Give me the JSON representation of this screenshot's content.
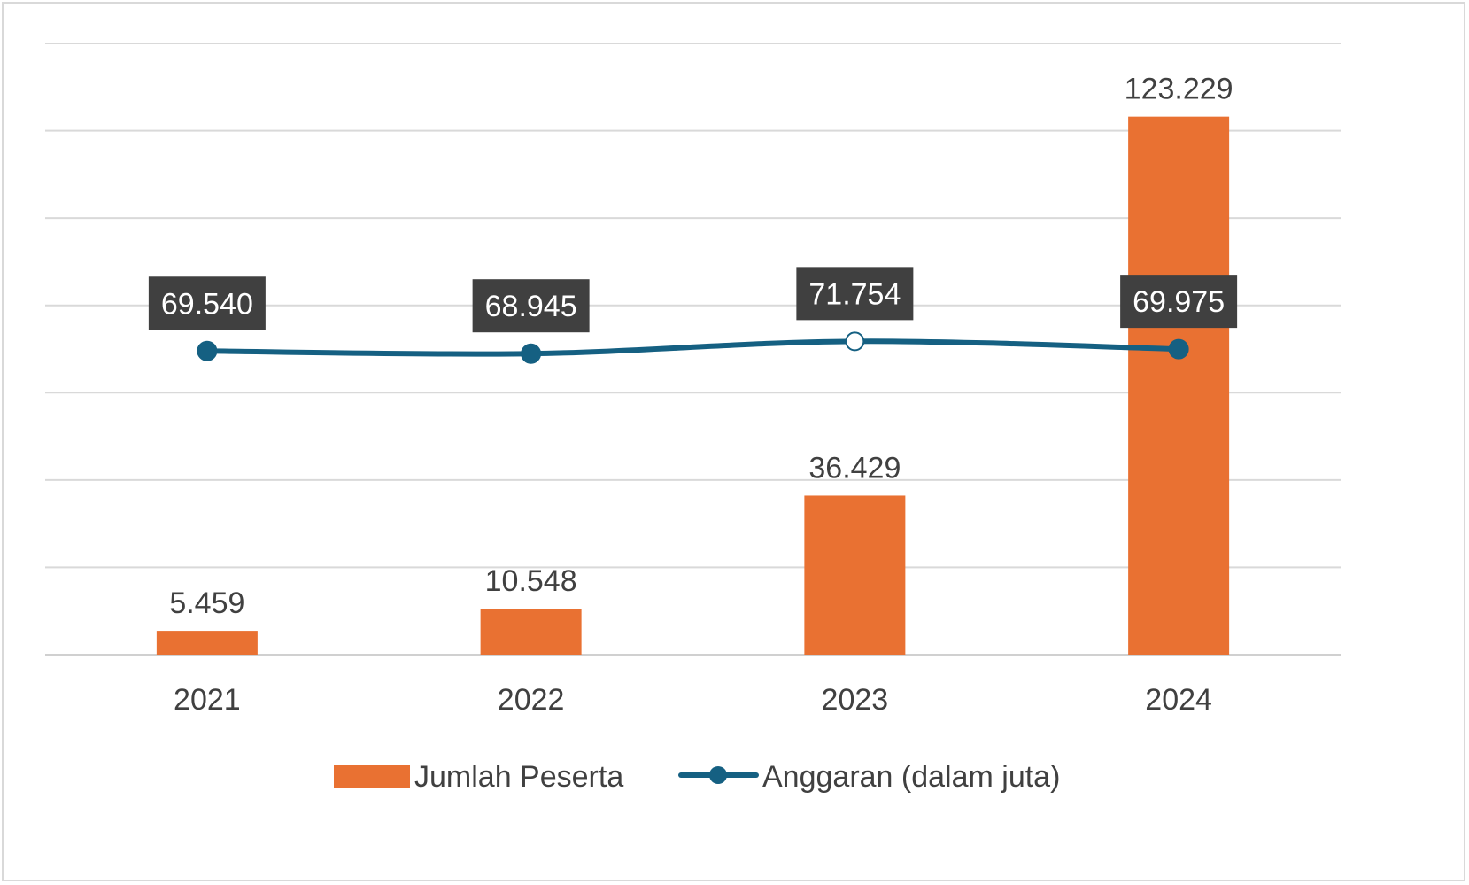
{
  "chart_data": {
    "type": "bar",
    "categories": [
      "2021",
      "2022",
      "2023",
      "2024"
    ],
    "series": [
      {
        "name": "Jumlah Peserta",
        "type": "bar",
        "values": [
          5459,
          10548,
          36429,
          123229
        ],
        "labels": [
          "5.459",
          "10.548",
          "36.429",
          "123.229"
        ],
        "color": "#E97132"
      },
      {
        "name": "Anggaran (dalam juta)",
        "type": "line",
        "values": [
          69540,
          68945,
          71754,
          69975
        ],
        "labels": [
          "69.540",
          "68.945",
          "71.754",
          "69.975"
        ],
        "color": "#156082",
        "label_box_color": "#404040"
      }
    ],
    "ylim": [
      0,
      140000
    ],
    "grid": true,
    "legend": "bottom",
    "title": "",
    "xlabel": "",
    "ylabel": ""
  }
}
